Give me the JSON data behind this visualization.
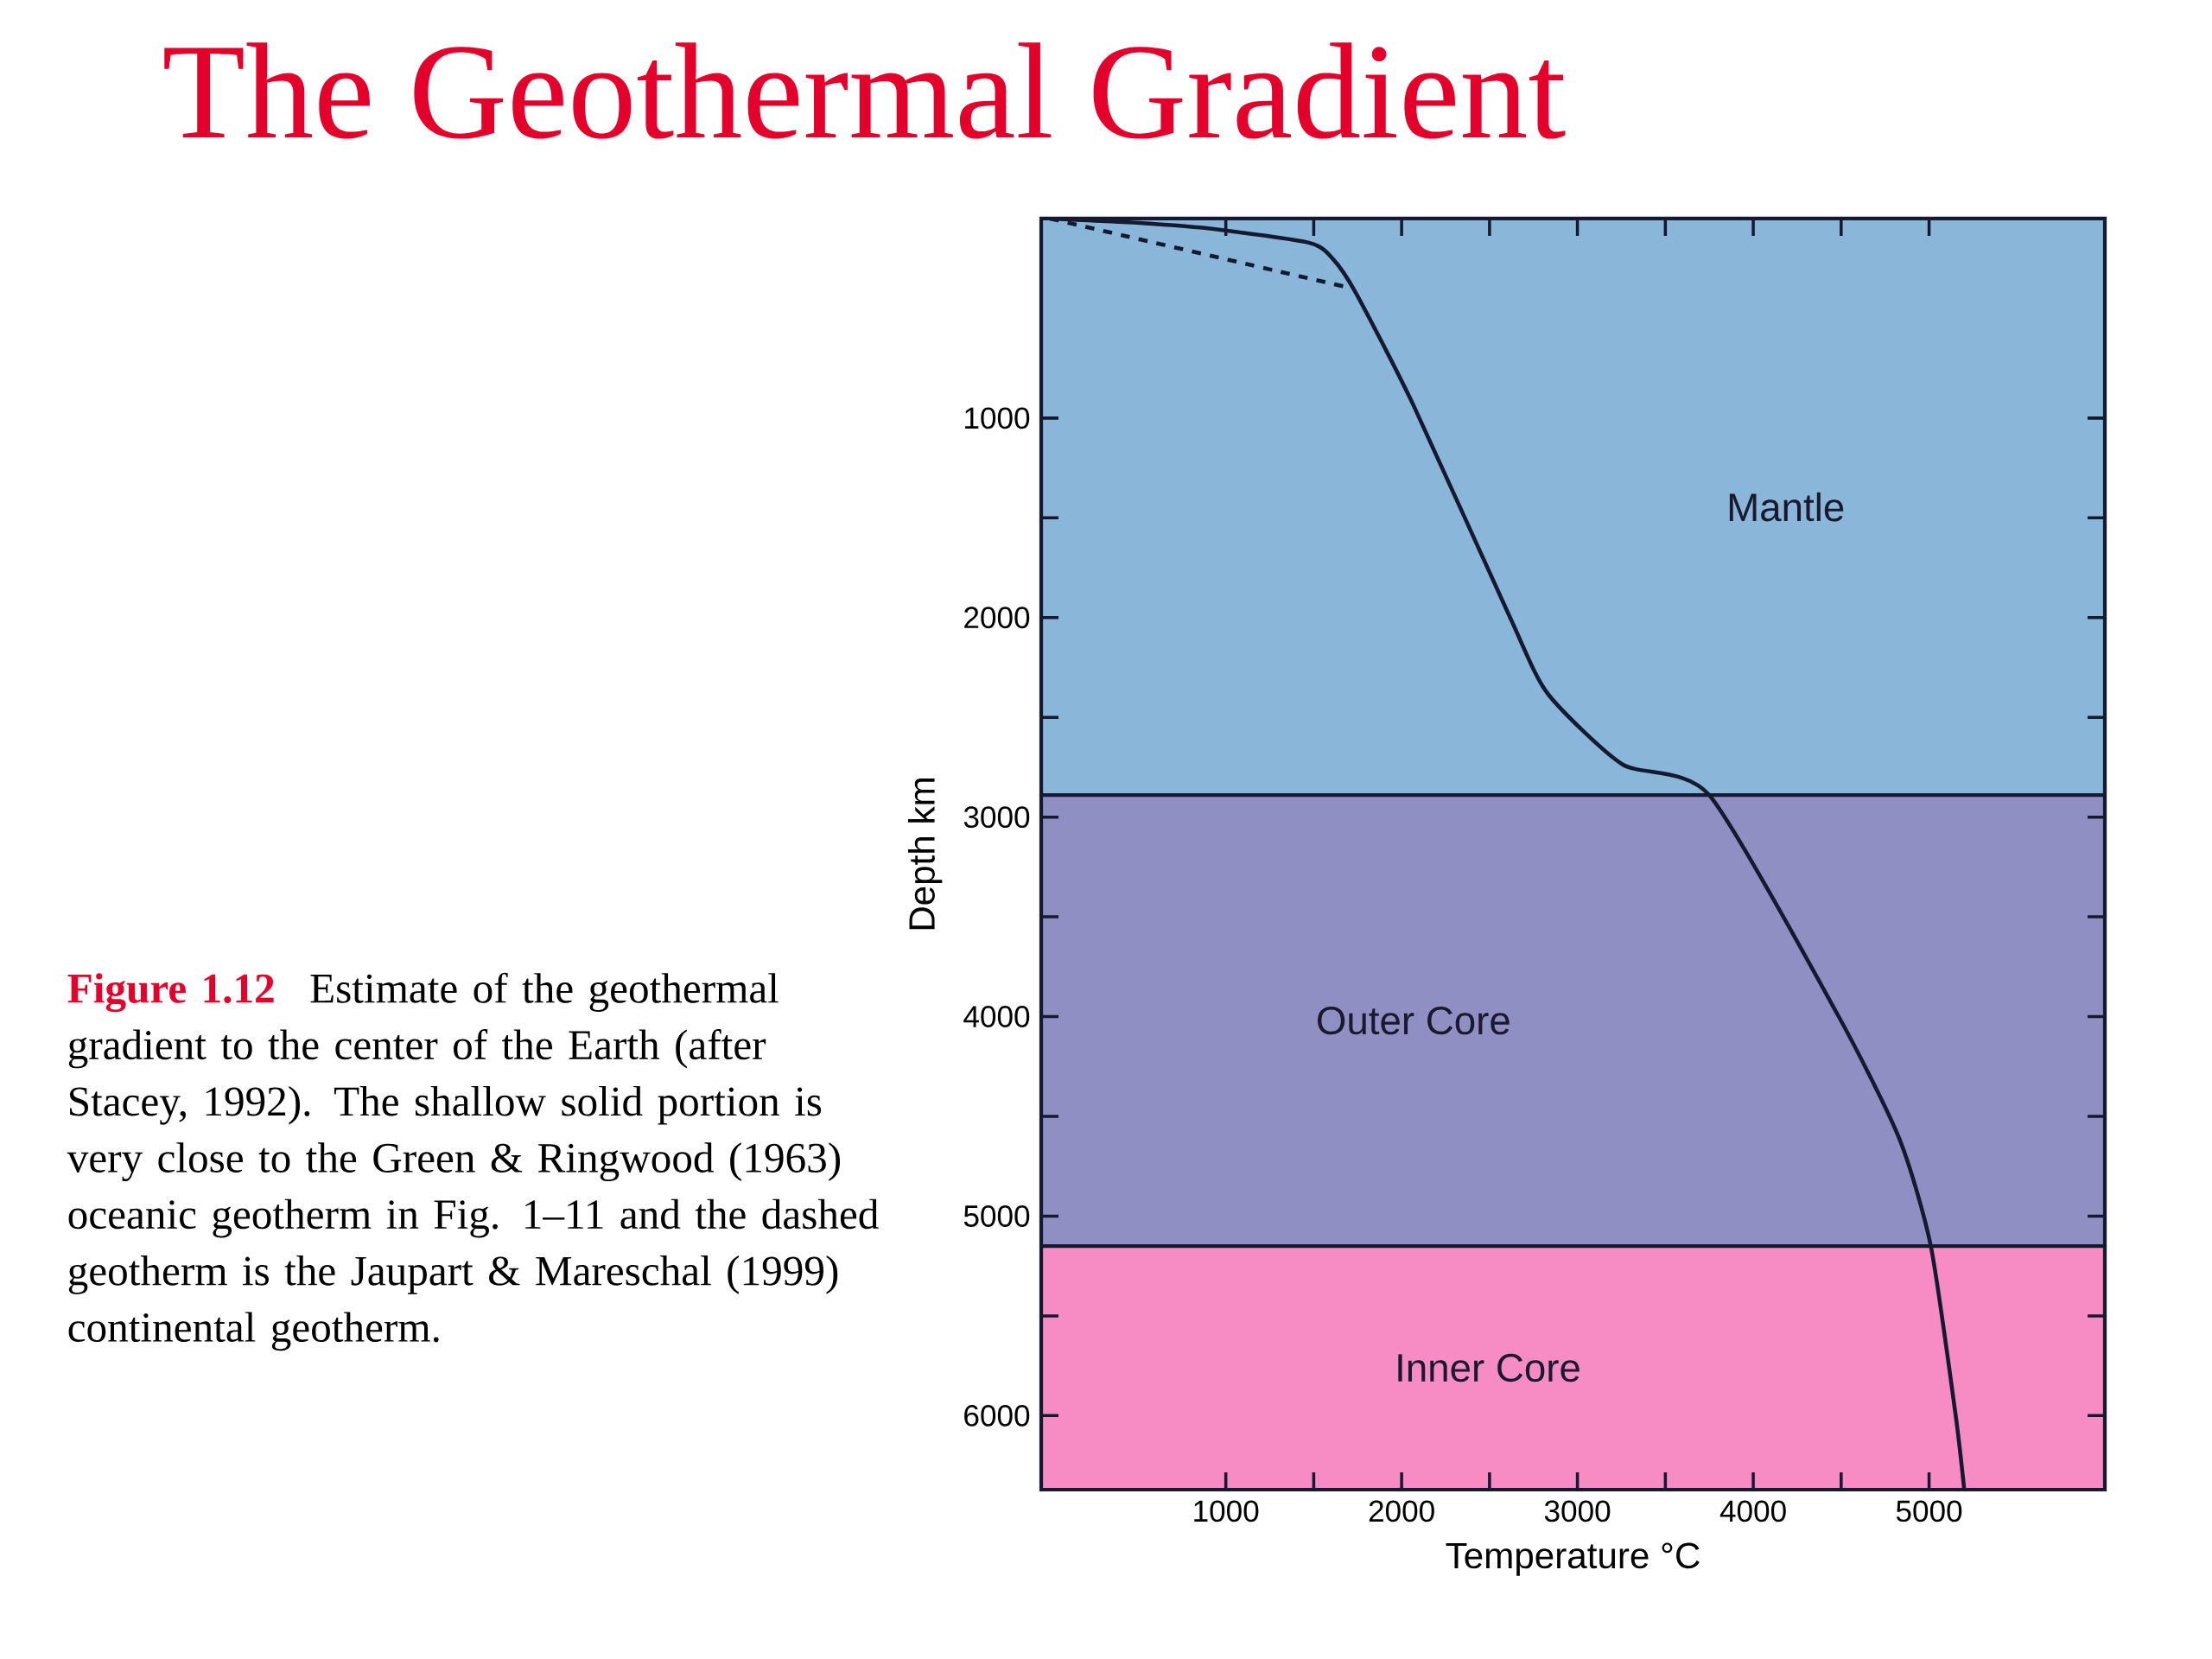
{
  "chart_data": {
    "type": "line",
    "title": "The Geothermal Gradient",
    "xlabel": "Temperature °C",
    "ylabel": "Depth km",
    "annotations": [
      "Figure 1.12",
      "Estimate of the geothermal gradient to the center of the Earth (after Stacey, 1992). The shallow solid portion is very close to the Green & Ringwood (1963) oceanic geotherm in Fig. 1–11 and the dashed geotherm is the Jaupart & Mareschal (1999) continental geotherm."
    ],
    "series": [
      {
        "color": "#151a30",
        "line_style": "solid",
        "x": [
          0,
          510,
          950,
          1476,
          1607,
          1740,
          2067,
          2617,
          2830,
          3255,
          3750,
          4480,
          4830,
          5010,
          5150,
          5200
        ],
        "values": [
          0,
          22,
          54,
          122,
          200,
          373,
          935,
          2000,
          2380,
          2735,
          2890,
          3990,
          4610,
          5150,
          5990,
          6371
        ]
      },
      {
        "color": "#151a30",
        "line_style": "dashed",
        "x": [
          0,
          1695
        ],
        "values": [
          0,
          345
        ]
      }
    ],
    "bands": [
      {
        "axis": "y",
        "from": 0,
        "to": 2890,
        "label": "Mantle",
        "color": "#8ab6d9"
      },
      {
        "axis": "y",
        "from": 2890,
        "to": 5150,
        "label": "Outer Core",
        "color": "#908fc4"
      },
      {
        "axis": "y",
        "from": 5150,
        "to": 6371,
        "label": "Inner Core",
        "color": "#f78bc4"
      }
    ],
    "xlim": [
      -50,
      6000
    ],
    "ylim": [
      6371,
      0
    ],
    "xticks": [
      1000,
      2000,
      3000,
      4000,
      5000
    ],
    "yticks": [
      1000,
      2000,
      3000,
      4000,
      5000,
      6000
    ],
    "grid": false
  }
}
